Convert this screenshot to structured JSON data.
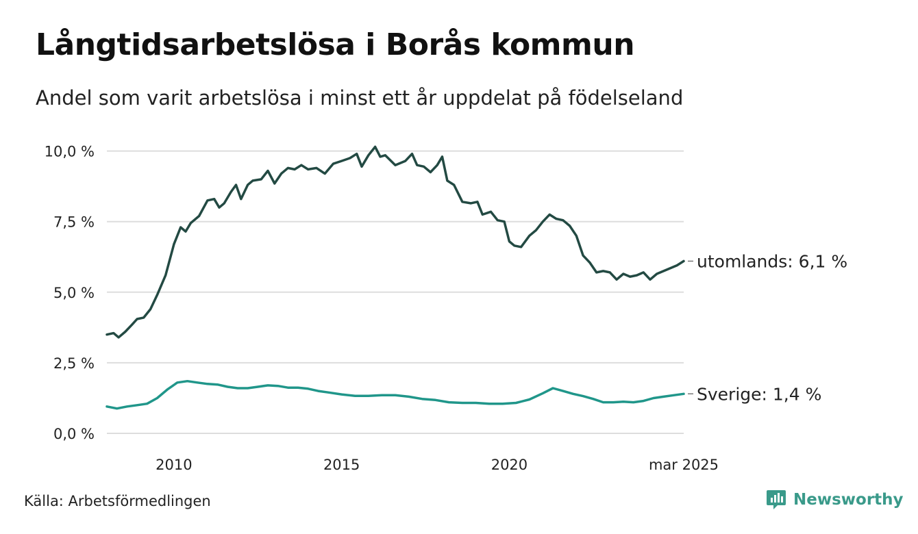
{
  "title": "Långtidsarbetslösa i Borås kommun",
  "subtitle": "Andel som varit arbetslösa i minst ett år uppdelat på födelseland",
  "source": "Källa: Arbetsförmedlingen",
  "brand": "Newsworthy",
  "colors": {
    "utomlands": "#234a43",
    "sverige": "#20968a",
    "grid": "#dddddd",
    "brand": "#3a9a8a"
  },
  "chart_data": {
    "type": "line",
    "title": "Långtidsarbetslösa i Borås kommun",
    "subtitle": "Andel som varit arbetslösa i minst ett år uppdelat på födelseland",
    "x_ticks": [
      {
        "x": 2010,
        "label": "2010"
      },
      {
        "x": 2015,
        "label": "2015"
      },
      {
        "x": 2020,
        "label": "2020"
      },
      {
        "x": 2025.2,
        "label": "mar 2025"
      }
    ],
    "y_ticks": [
      {
        "y": 0,
        "label": "0,0 %"
      },
      {
        "y": 2.5,
        "label": "2,5 %"
      },
      {
        "y": 5,
        "label": "5,0 %"
      },
      {
        "y": 7.5,
        "label": "7,5 %"
      },
      {
        "y": 10,
        "label": "10,0 %"
      }
    ],
    "xlim": [
      2008.0,
      2025.2
    ],
    "ylim": [
      0,
      10.5
    ],
    "grid": true,
    "series": [
      {
        "key": "utomlands",
        "name": "utomlands",
        "end_label": "utomlands: 6,1 %",
        "points": [
          [
            2008.0,
            3.5
          ],
          [
            2008.2,
            3.55
          ],
          [
            2008.35,
            3.4
          ],
          [
            2008.55,
            3.6
          ],
          [
            2008.75,
            3.85
          ],
          [
            2008.9,
            4.05
          ],
          [
            2009.1,
            4.1
          ],
          [
            2009.3,
            4.4
          ],
          [
            2009.5,
            4.9
          ],
          [
            2009.75,
            5.6
          ],
          [
            2010.0,
            6.7
          ],
          [
            2010.2,
            7.3
          ],
          [
            2010.35,
            7.15
          ],
          [
            2010.5,
            7.45
          ],
          [
            2010.75,
            7.7
          ],
          [
            2011.0,
            8.25
          ],
          [
            2011.2,
            8.3
          ],
          [
            2011.35,
            8.0
          ],
          [
            2011.5,
            8.15
          ],
          [
            2011.7,
            8.55
          ],
          [
            2011.85,
            8.8
          ],
          [
            2012.0,
            8.3
          ],
          [
            2012.2,
            8.8
          ],
          [
            2012.35,
            8.95
          ],
          [
            2012.6,
            9.0
          ],
          [
            2012.8,
            9.3
          ],
          [
            2013.0,
            8.85
          ],
          [
            2013.2,
            9.2
          ],
          [
            2013.4,
            9.4
          ],
          [
            2013.6,
            9.35
          ],
          [
            2013.8,
            9.5
          ],
          [
            2014.0,
            9.35
          ],
          [
            2014.25,
            9.4
          ],
          [
            2014.5,
            9.2
          ],
          [
            2014.75,
            9.55
          ],
          [
            2015.0,
            9.65
          ],
          [
            2015.25,
            9.75
          ],
          [
            2015.45,
            9.9
          ],
          [
            2015.6,
            9.45
          ],
          [
            2015.8,
            9.85
          ],
          [
            2016.0,
            10.15
          ],
          [
            2016.15,
            9.8
          ],
          [
            2016.3,
            9.85
          ],
          [
            2016.6,
            9.5
          ],
          [
            2016.9,
            9.65
          ],
          [
            2017.1,
            9.9
          ],
          [
            2017.25,
            9.5
          ],
          [
            2017.45,
            9.45
          ],
          [
            2017.65,
            9.25
          ],
          [
            2017.85,
            9.5
          ],
          [
            2018.0,
            9.8
          ],
          [
            2018.15,
            8.95
          ],
          [
            2018.35,
            8.8
          ],
          [
            2018.6,
            8.2
          ],
          [
            2018.85,
            8.15
          ],
          [
            2019.05,
            8.2
          ],
          [
            2019.2,
            7.75
          ],
          [
            2019.45,
            7.85
          ],
          [
            2019.65,
            7.55
          ],
          [
            2019.85,
            7.5
          ],
          [
            2020.0,
            6.8
          ],
          [
            2020.15,
            6.65
          ],
          [
            2020.35,
            6.6
          ],
          [
            2020.6,
            7.0
          ],
          [
            2020.8,
            7.2
          ],
          [
            2021.0,
            7.5
          ],
          [
            2021.2,
            7.75
          ],
          [
            2021.4,
            7.6
          ],
          [
            2021.6,
            7.55
          ],
          [
            2021.8,
            7.35
          ],
          [
            2022.0,
            7.0
          ],
          [
            2022.2,
            6.3
          ],
          [
            2022.4,
            6.05
          ],
          [
            2022.6,
            5.7
          ],
          [
            2022.8,
            5.75
          ],
          [
            2023.0,
            5.7
          ],
          [
            2023.2,
            5.45
          ],
          [
            2023.4,
            5.65
          ],
          [
            2023.6,
            5.55
          ],
          [
            2023.8,
            5.6
          ],
          [
            2024.0,
            5.7
          ],
          [
            2024.2,
            5.45
          ],
          [
            2024.4,
            5.65
          ],
          [
            2024.6,
            5.75
          ],
          [
            2024.8,
            5.85
          ],
          [
            2025.0,
            5.95
          ],
          [
            2025.2,
            6.1
          ]
        ]
      },
      {
        "key": "sverige",
        "name": "Sverige",
        "end_label": "Sverige: 1,4 %",
        "points": [
          [
            2008.0,
            0.95
          ],
          [
            2008.3,
            0.88
          ],
          [
            2008.6,
            0.95
          ],
          [
            2008.9,
            1.0
          ],
          [
            2009.2,
            1.05
          ],
          [
            2009.5,
            1.25
          ],
          [
            2009.8,
            1.55
          ],
          [
            2010.1,
            1.8
          ],
          [
            2010.4,
            1.85
          ],
          [
            2010.7,
            1.8
          ],
          [
            2011.0,
            1.75
          ],
          [
            2011.3,
            1.73
          ],
          [
            2011.6,
            1.65
          ],
          [
            2011.9,
            1.6
          ],
          [
            2012.2,
            1.6
          ],
          [
            2012.5,
            1.65
          ],
          [
            2012.8,
            1.7
          ],
          [
            2013.1,
            1.68
          ],
          [
            2013.4,
            1.62
          ],
          [
            2013.7,
            1.62
          ],
          [
            2014.0,
            1.58
          ],
          [
            2014.3,
            1.5
          ],
          [
            2014.6,
            1.45
          ],
          [
            2015.0,
            1.38
          ],
          [
            2015.4,
            1.33
          ],
          [
            2015.8,
            1.33
          ],
          [
            2016.2,
            1.35
          ],
          [
            2016.6,
            1.35
          ],
          [
            2017.0,
            1.3
          ],
          [
            2017.4,
            1.22
          ],
          [
            2017.8,
            1.18
          ],
          [
            2018.2,
            1.1
          ],
          [
            2018.6,
            1.08
          ],
          [
            2019.0,
            1.08
          ],
          [
            2019.4,
            1.05
          ],
          [
            2019.8,
            1.05
          ],
          [
            2020.2,
            1.08
          ],
          [
            2020.6,
            1.2
          ],
          [
            2021.0,
            1.42
          ],
          [
            2021.3,
            1.6
          ],
          [
            2021.6,
            1.5
          ],
          [
            2021.9,
            1.4
          ],
          [
            2022.2,
            1.32
          ],
          [
            2022.5,
            1.22
          ],
          [
            2022.8,
            1.1
          ],
          [
            2023.1,
            1.1
          ],
          [
            2023.4,
            1.12
          ],
          [
            2023.7,
            1.1
          ],
          [
            2024.0,
            1.15
          ],
          [
            2024.3,
            1.25
          ],
          [
            2024.6,
            1.3
          ],
          [
            2024.9,
            1.35
          ],
          [
            2025.2,
            1.4
          ]
        ]
      }
    ]
  }
}
